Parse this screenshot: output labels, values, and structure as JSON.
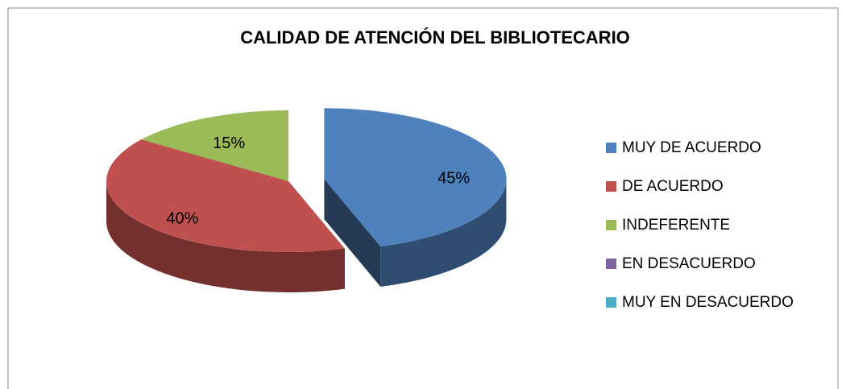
{
  "chart_data": {
    "type": "pie",
    "title": "CALIDAD DE ATENCIÓN DEL BIBLIOTECARIO",
    "categories": [
      "MUY DE ACUERDO",
      "DE ACUERDO",
      "INDEFERENTE",
      "EN DESACUERDO",
      "MUY EN DESACUERDO"
    ],
    "values": [
      45,
      40,
      15,
      0,
      0
    ],
    "value_labels": [
      "45%",
      "40%",
      "15%",
      null,
      null
    ],
    "colors": [
      "#4f81bd",
      "#c0504d",
      "#9bbb59",
      "#8064a2",
      "#4bacc6"
    ],
    "legend": "right"
  }
}
